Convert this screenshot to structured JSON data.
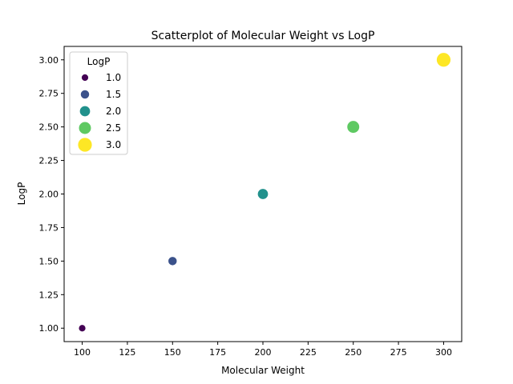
{
  "chart_data": {
    "type": "scatter",
    "title": "Scatterplot of Molecular Weight vs LogP",
    "xlabel": "Molecular Weight",
    "ylabel": "LogP",
    "xlim": [
      90,
      310
    ],
    "ylim": [
      0.9,
      3.1
    ],
    "grid": false,
    "x_ticks": [
      100,
      125,
      150,
      175,
      200,
      225,
      250,
      275,
      300
    ],
    "x_tick_labels": [
      "100",
      "125",
      "150",
      "175",
      "200",
      "225",
      "250",
      "275",
      "300"
    ],
    "y_ticks": [
      1.0,
      1.25,
      1.5,
      1.75,
      2.0,
      2.25,
      2.5,
      2.75,
      3.0
    ],
    "y_tick_labels": [
      "1.00",
      "1.25",
      "1.50",
      "1.75",
      "2.00",
      "2.25",
      "2.50",
      "2.75",
      "3.00"
    ],
    "points": [
      {
        "x": 100,
        "y": 1.0,
        "hue": 1.0,
        "color": "#440154"
      },
      {
        "x": 150,
        "y": 1.5,
        "hue": 1.5,
        "color": "#3b528b"
      },
      {
        "x": 200,
        "y": 2.0,
        "hue": 2.0,
        "color": "#21918c"
      },
      {
        "x": 250,
        "y": 2.5,
        "hue": 2.5,
        "color": "#5ec962"
      },
      {
        "x": 300,
        "y": 3.0,
        "hue": 3.0,
        "color": "#fde725"
      }
    ],
    "legend": {
      "title": "LogP",
      "placement": "upper-left",
      "entries": [
        {
          "label": "1.0",
          "value": 1.0,
          "color": "#440154"
        },
        {
          "label": "1.5",
          "value": 1.5,
          "color": "#3b528b"
        },
        {
          "label": "2.0",
          "value": 2.0,
          "color": "#21918c"
        },
        {
          "label": "2.5",
          "value": 2.5,
          "color": "#5ec962"
        },
        {
          "label": "3.0",
          "value": 3.0,
          "color": "#fde725"
        }
      ]
    }
  }
}
